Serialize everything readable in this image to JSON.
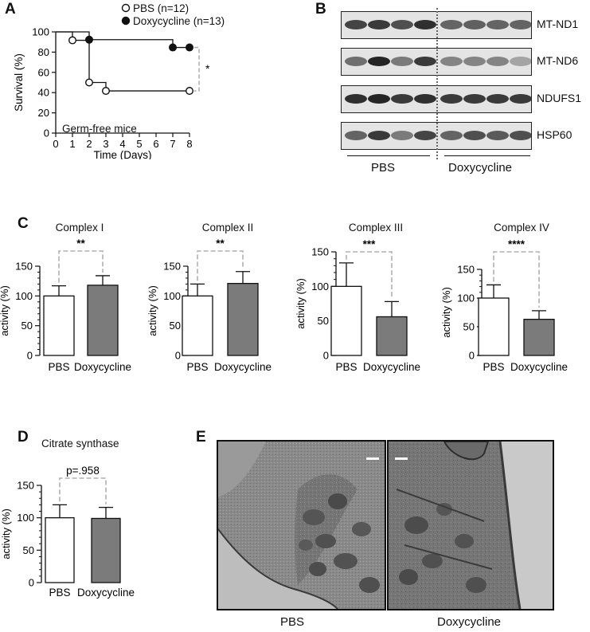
{
  "panels": {
    "a": "A",
    "b": "B",
    "c": "C",
    "d": "D",
    "e": "E"
  },
  "survival": {
    "legend": [
      {
        "label": "PBS (n=12)",
        "marker": "open"
      },
      {
        "label": "Doxycycline (n=13)",
        "marker": "filled"
      }
    ],
    "annotation": "Germ-free mice",
    "significance": "*"
  },
  "blot": {
    "proteins": [
      "MT-ND1",
      "MT-ND6",
      "NDUFS1",
      "HSP60"
    ],
    "groups": [
      "PBS",
      "Doxycycline"
    ]
  },
  "em": {
    "captions": [
      "PBS",
      "Doxycycline"
    ],
    "scale_bar_color": "#ffffff"
  },
  "colors": {
    "pbs_bar": "#ffffff",
    "doxy_bar": "#7b7b7b",
    "axis": "#111111",
    "bracket": "#b0b0b0",
    "em_background": "#a6a6a6"
  },
  "chart_data": [
    {
      "id": "A",
      "type": "line",
      "step": true,
      "xlabel": "Time (Days)",
      "ylabel": "Survival (%)",
      "xlim": [
        0,
        8
      ],
      "ylim": [
        0,
        100
      ],
      "xticks": [
        0,
        1,
        2,
        3,
        4,
        5,
        6,
        7,
        8
      ],
      "yticks": [
        0,
        20,
        40,
        60,
        80,
        100
      ],
      "series": [
        {
          "name": "PBS (n=12)",
          "marker": "open",
          "x": [
            0,
            1,
            2,
            3,
            8
          ],
          "y": [
            100,
            91.7,
            50,
            41.7,
            41.7
          ]
        },
        {
          "name": "Doxycycline (n=13)",
          "marker": "filled",
          "x": [
            0,
            2,
            7,
            8
          ],
          "y": [
            100,
            92.3,
            84.6,
            84.6
          ]
        }
      ],
      "significance": "*"
    },
    {
      "id": "C1",
      "type": "bar",
      "title": "Complex I",
      "ylabel": "activity (%)",
      "categories": [
        "PBS",
        "Doxycycline"
      ],
      "values": [
        100,
        118
      ],
      "errors": [
        17,
        16
      ],
      "ylim": [
        0,
        150
      ],
      "yticks": [
        0,
        50,
        100,
        150
      ],
      "significance": "**"
    },
    {
      "id": "C2",
      "type": "bar",
      "title": "Complex II",
      "ylabel": "activity (%)",
      "categories": [
        "PBS",
        "Doxycycline"
      ],
      "values": [
        100,
        121
      ],
      "errors": [
        20,
        20
      ],
      "ylim": [
        0,
        150
      ],
      "yticks": [
        0,
        50,
        100,
        150
      ],
      "significance": "**"
    },
    {
      "id": "C3",
      "type": "bar",
      "title": "Complex III",
      "ylabel": "activity (%)",
      "categories": [
        "PBS",
        "Doxycycline"
      ],
      "values": [
        100,
        56
      ],
      "errors": [
        34,
        22
      ],
      "ylim": [
        0,
        150
      ],
      "yticks": [
        0,
        50,
        100,
        150
      ],
      "significance": "***"
    },
    {
      "id": "C4",
      "type": "bar",
      "title": "Complex IV",
      "ylabel": "activity (%)",
      "categories": [
        "PBS",
        "Doxycycline"
      ],
      "values": [
        100,
        63
      ],
      "errors": [
        23,
        15
      ],
      "ylim": [
        0,
        150
      ],
      "yticks": [
        0,
        50,
        100,
        150
      ],
      "significance": "****"
    },
    {
      "id": "D",
      "type": "bar",
      "title": "Citrate synthase",
      "ylabel": "activity (%)",
      "categories": [
        "PBS",
        "Doxycycline"
      ],
      "values": [
        100,
        99
      ],
      "errors": [
        20,
        17
      ],
      "ylim": [
        0,
        150
      ],
      "yticks": [
        0,
        50,
        100,
        150
      ],
      "significance": "p=.958"
    }
  ]
}
